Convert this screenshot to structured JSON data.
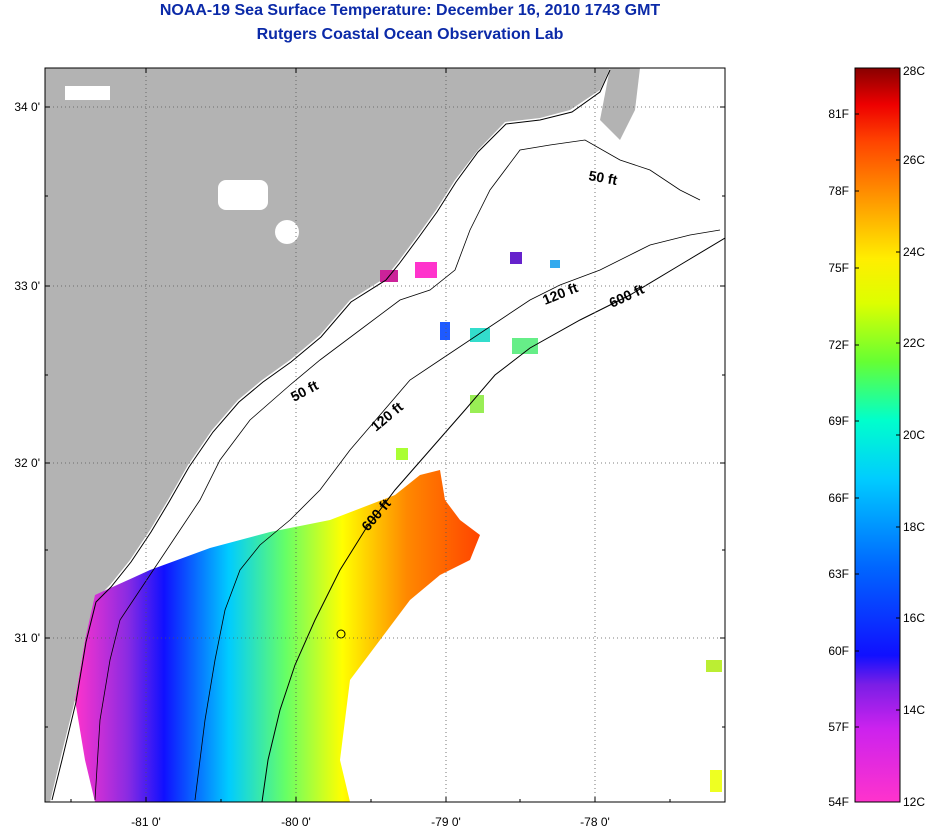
{
  "header": {
    "title": "NOAA-19 Sea Surface Temperature:  December 16, 2010 1743 GMT",
    "subtitle": "Rutgers Coastal Ocean Observation Lab"
  },
  "map": {
    "lat_labels": [
      "34 0'",
      "33 0'",
      "32 0'",
      "31 0'"
    ],
    "lon_labels": [
      "-81 0'",
      "-80 0'",
      "-79 0'",
      "-78 0'"
    ],
    "isobath_labels": [
      "50 ft",
      "50 ft",
      "120 ft",
      "120 ft",
      "600 ft",
      "600 ft"
    ],
    "colors": {
      "land": "#b3b3b3",
      "water_nodata": "#ffffff"
    }
  },
  "colorbar": {
    "fahrenheit_labels": [
      "81F",
      "78F",
      "75F",
      "72F",
      "69F",
      "66F",
      "63F",
      "60F",
      "57F",
      "54F"
    ],
    "celsius_labels": [
      "28C",
      "26C",
      "24C",
      "22C",
      "20C",
      "18C",
      "16C",
      "14C",
      "12C"
    ],
    "range_c": [
      12,
      28
    ],
    "stops": [
      "#ff33cc",
      "#8a2be2",
      "#0000ff",
      "#0077ff",
      "#00ffff",
      "#66ff66",
      "#ffff00",
      "#ffaa00",
      "#ff5500",
      "#ff0000",
      "#990000"
    ]
  }
}
